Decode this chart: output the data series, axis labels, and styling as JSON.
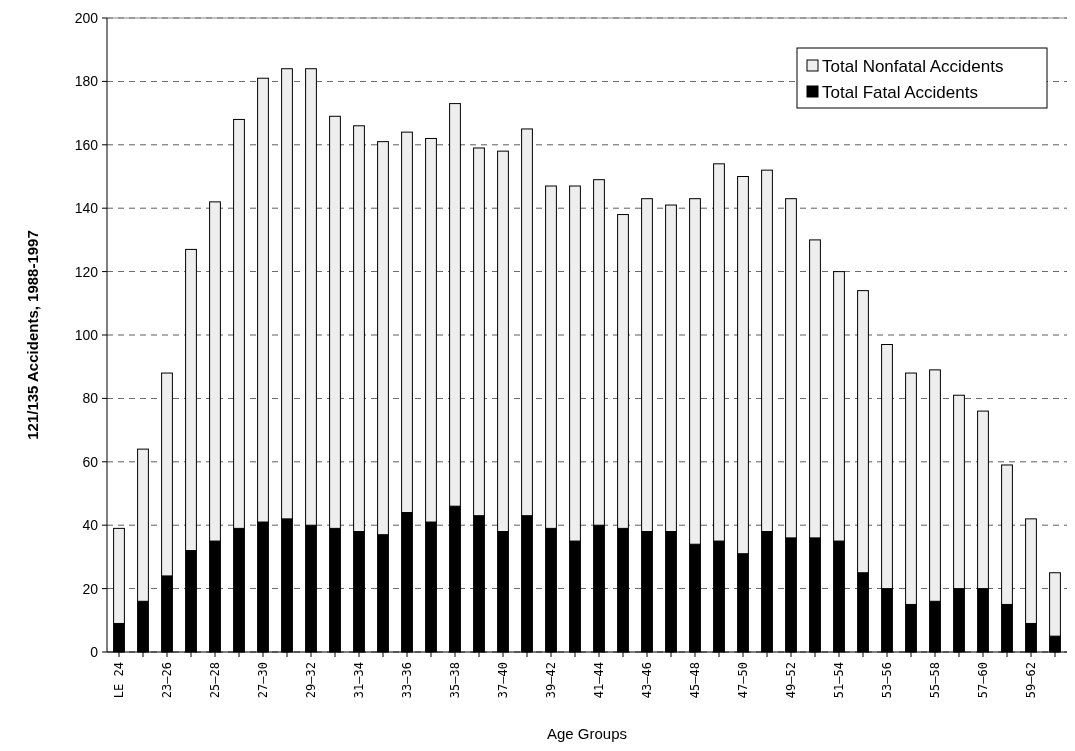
{
  "chart_data": {
    "type": "bar",
    "stacked": true,
    "xlabel": "Age Groups",
    "ylabel": "121/135 Accidents, 1988-1997",
    "categories": [
      "LE 24",
      null,
      "23–26",
      null,
      "25–28",
      null,
      "27–30",
      null,
      "29–32",
      null,
      "31–34",
      null,
      "33–36",
      null,
      "35–38",
      null,
      "37–40",
      null,
      "39–42",
      null,
      "41–44",
      null,
      "43–46",
      null,
      "45–48",
      null,
      "47–50",
      null,
      "49–52",
      null,
      "51–54",
      null,
      "53–56",
      null,
      "55–58",
      null,
      "57–60",
      null,
      "59–62",
      null
    ],
    "series": [
      {
        "name": "Total Fatal Accidents",
        "color": "#000000",
        "values": [
          9,
          16,
          24,
          32,
          35,
          39,
          41,
          42,
          40,
          39,
          38,
          37,
          44,
          41,
          46,
          43,
          38,
          43,
          39,
          35,
          40,
          39,
          38,
          38,
          34,
          35,
          31,
          38,
          36,
          36,
          35,
          25,
          20,
          15,
          16,
          20,
          20,
          15,
          9,
          5
        ]
      },
      {
        "name": "Total Nonfatal Accidents",
        "color": "#eeeeee",
        "values": [
          30,
          48,
          64,
          95,
          107,
          129,
          140,
          142,
          144,
          130,
          128,
          124,
          120,
          121,
          127,
          116,
          120,
          122,
          108,
          112,
          109,
          99,
          105,
          103,
          109,
          119,
          119,
          114,
          107,
          94,
          85,
          89,
          77,
          73,
          73,
          61,
          56,
          44,
          33,
          20
        ]
      }
    ],
    "ylim": [
      0,
      200
    ],
    "yticks": [
      0,
      20,
      40,
      60,
      80,
      100,
      120,
      140,
      160,
      180,
      200
    ],
    "grid": "y",
    "legend": "top right"
  }
}
